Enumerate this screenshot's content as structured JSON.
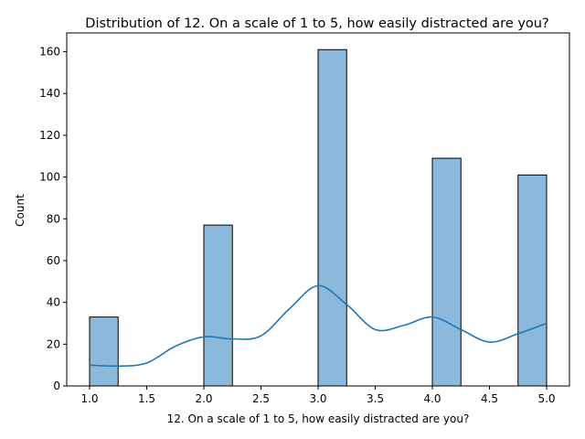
{
  "chart_data": {
    "type": "bar",
    "title": "Distribution of 12. On a scale of 1 to 5, how easily distracted are you?",
    "xlabel": "12. On a scale of 1 to 5, how easily distracted are you?",
    "ylabel": "Count",
    "xlim": [
      0.8,
      5.2
    ],
    "ylim": [
      0,
      169
    ],
    "xticks": [
      "1.0",
      "1.5",
      "2.0",
      "2.5",
      "3.0",
      "3.5",
      "4.0",
      "4.5",
      "5.0"
    ],
    "yticks": [
      "0",
      "20",
      "40",
      "60",
      "80",
      "100",
      "120",
      "140",
      "160"
    ],
    "grid": false,
    "bin_width": 0.25,
    "bins": [
      {
        "x0": 1.0,
        "x1": 1.25,
        "value": 33
      },
      {
        "x0": 2.0,
        "x1": 2.25,
        "value": 77
      },
      {
        "x0": 3.0,
        "x1": 3.25,
        "value": 161
      },
      {
        "x0": 4.0,
        "x1": 4.25,
        "value": 109
      },
      {
        "x0": 4.75,
        "x1": 5.0,
        "value": 101
      }
    ],
    "kde": {
      "x": [
        1.0,
        1.25,
        1.5,
        1.75,
        2.0,
        2.25,
        2.5,
        2.75,
        3.0,
        3.25,
        3.5,
        3.75,
        4.0,
        4.25,
        4.5,
        4.75,
        5.0
      ],
      "y": [
        10,
        9.5,
        11,
        19,
        23.5,
        22.5,
        24,
        37,
        48,
        39,
        27,
        29,
        33,
        27,
        21,
        25,
        30
      ]
    },
    "colors": {
      "bar_fill": "#8ab9dc",
      "bar_edge": "#000000",
      "kde_line": "#1f77b4",
      "axis": "#000000"
    }
  }
}
